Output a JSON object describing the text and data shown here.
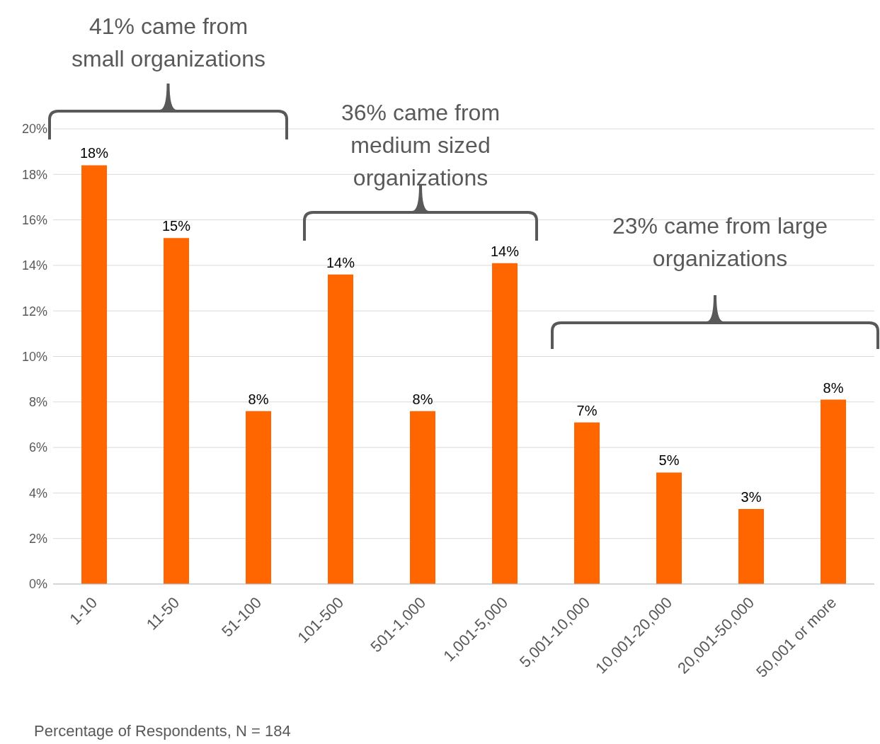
{
  "chart_data": {
    "type": "bar",
    "categories": [
      "1-10",
      "11-50",
      "51-100",
      "101-500",
      "501-1,000",
      "1,001-5,000",
      "5,001-10,000",
      "10,001-20,000",
      "20,001-50,000",
      "50,001 or more"
    ],
    "values": [
      18.4,
      15.2,
      7.6,
      13.6,
      7.6,
      14.1,
      7.1,
      4.9,
      3.3,
      8.1
    ],
    "value_labels": [
      "18%",
      "15%",
      "8%",
      "14%",
      "8%",
      "14%",
      "7%",
      "5%",
      "3%",
      "8%"
    ],
    "color": "#ff6600",
    "ylim": [
      0,
      20
    ],
    "yticks": [
      {
        "value": 0,
        "label": "0%"
      },
      {
        "value": 2,
        "label": "2%"
      },
      {
        "value": 4,
        "label": "4%"
      },
      {
        "value": 6,
        "label": "6%"
      },
      {
        "value": 8,
        "label": "8%"
      },
      {
        "value": 10,
        "label": "10%"
      },
      {
        "value": 12,
        "label": "12%"
      },
      {
        "value": 14,
        "label": "14%"
      },
      {
        "value": 16,
        "label": "16%"
      },
      {
        "value": 18,
        "label": "18%"
      },
      {
        "value": 20,
        "label": "20%"
      }
    ],
    "grid": "y",
    "legend": false,
    "annotations": [
      "41% came from\nsmall organizations",
      "36% came from\nmedium sized\norganizations",
      "23% came from large\norganizations",
      "Percentage of Respondents, N = 184"
    ]
  }
}
